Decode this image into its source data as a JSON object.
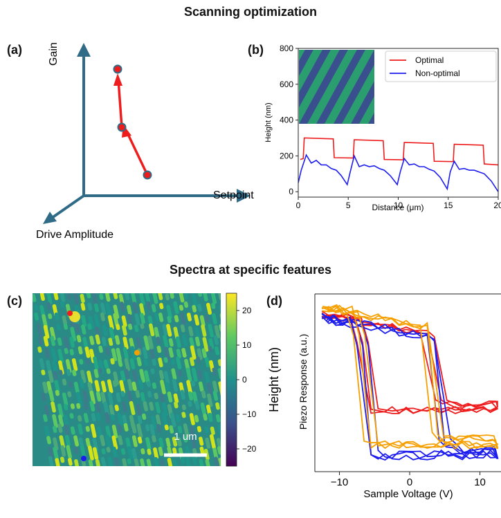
{
  "titles": {
    "top": "Scanning optimization",
    "bottom": "Spectra at specific features"
  },
  "labels": {
    "a": "(a)",
    "b": "(b)",
    "c": "(c)",
    "d": "(d)"
  },
  "colors": {
    "axis_arrow": "#2f6b86",
    "optimal": "#ee1c1c",
    "non_optimal": "#1c1cee",
    "orange": "#f5a000"
  },
  "chart_data": [
    {
      "id": "a",
      "type": "diagram-3d-axes",
      "axis_labels": {
        "z": "Gain",
        "x": "Setpoint",
        "y": "Drive Amplitude"
      },
      "path_points": 3
    },
    {
      "id": "b",
      "type": "line",
      "xlabel": "Distance (μm)",
      "ylabel": "Height (nm)",
      "xlim": [
        0,
        20
      ],
      "ylim": [
        -30,
        800
      ],
      "xticks": [
        "0",
        "5",
        "10",
        "15",
        "20"
      ],
      "yticks": [
        "0",
        "200",
        "400",
        "600",
        "800"
      ],
      "legend_position": "top-right",
      "series": [
        {
          "name": "Optimal",
          "x": [
            0.2,
            0.5,
            0.6,
            3.5,
            3.6,
            5.5,
            5.6,
            8.5,
            8.6,
            10.5,
            10.6,
            13.5,
            13.6,
            15.5,
            15.6,
            18.5,
            18.6,
            20
          ],
          "y": [
            180,
            185,
            300,
            295,
            190,
            188,
            290,
            285,
            180,
            178,
            275,
            270,
            170,
            168,
            265,
            260,
            155,
            150
          ]
        },
        {
          "name": "Non-optimal",
          "x": [
            0,
            0.3,
            0.8,
            1.3,
            1.8,
            2.3,
            2.8,
            3.3,
            3.8,
            4.3,
            4.9,
            5.2,
            5.6,
            6.1,
            6.6,
            7.1,
            7.6,
            8.1,
            8.6,
            9.2,
            9.9,
            10.2,
            10.6,
            11.1,
            11.6,
            12.1,
            12.6,
            13.1,
            13.6,
            14.2,
            14.9,
            15.2,
            15.6,
            16.1,
            16.6,
            17.1,
            17.6,
            18.1,
            18.6,
            19.3,
            20
          ],
          "y": [
            50,
            120,
            205,
            160,
            175,
            150,
            150,
            130,
            120,
            90,
            40,
            110,
            200,
            140,
            150,
            140,
            145,
            130,
            120,
            90,
            40,
            110,
            185,
            150,
            155,
            140,
            140,
            125,
            115,
            80,
            15,
            110,
            170,
            125,
            130,
            120,
            120,
            110,
            100,
            60,
            0
          ]
        }
      ],
      "inset": "striped height image"
    },
    {
      "id": "c",
      "type": "heatmap",
      "colorbar_label": "Height (nm)",
      "colorbar_ticks": [
        "20",
        "10",
        "0",
        "−10",
        "−20"
      ],
      "scalebar_text": "1 um",
      "markers": [
        "red",
        "orange",
        "blue"
      ]
    },
    {
      "id": "d",
      "type": "line",
      "xlabel": "Sample Voltage (V)",
      "ylabel": "Piezo Response (a.u.)",
      "xticks": [
        "−10",
        "0",
        "10"
      ],
      "xlim": [
        -13.5,
        13
      ],
      "series": [
        {
          "color": "red",
          "kind": "hysteresis-red"
        },
        {
          "color": "blue",
          "kind": "hysteresis-blue"
        },
        {
          "color": "orange",
          "kind": "hysteresis-orange"
        }
      ]
    }
  ]
}
